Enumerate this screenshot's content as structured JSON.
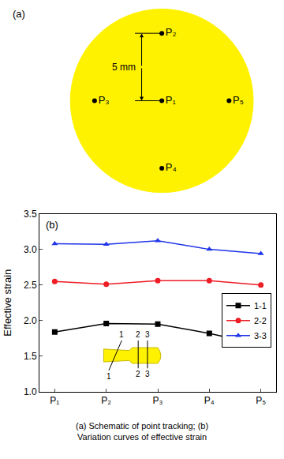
{
  "schematic": {
    "panel_label": "(a)",
    "points": [
      {
        "label": "P₁",
        "x": 0,
        "y": 0
      },
      {
        "label": "P₂",
        "x": 0,
        "y": 5
      },
      {
        "label": "P₃",
        "x": -5,
        "y": 0
      },
      {
        "label": "P₄",
        "x": 0,
        "y": -5
      },
      {
        "label": "P₅",
        "x": 5,
        "y": 0
      }
    ],
    "dimension": {
      "label": "5 mm",
      "value": 5
    }
  },
  "chart_data": {
    "type": "line",
    "panel_label": "(b)",
    "y_label": "Effective strain",
    "categories": [
      "P₁",
      "P₂",
      "P₃",
      "P₄",
      "P₅"
    ],
    "series": [
      {
        "name": "1-1",
        "color": "#000000",
        "marker": "square",
        "line_style": "solid",
        "values": [
          1.84,
          1.96,
          1.95,
          1.82,
          1.66
        ]
      },
      {
        "name": "2-2",
        "color": "#ee1c25",
        "marker": "circle",
        "line_style": "solid",
        "values": [
          2.55,
          2.51,
          2.56,
          2.56,
          2.5
        ]
      },
      {
        "name": "3-3",
        "color": "#1f35e8",
        "marker": "triangle-up",
        "line_style": "solid",
        "values": [
          3.08,
          3.07,
          3.12,
          3.0,
          2.94
        ]
      }
    ],
    "ylim": [
      1.0,
      3.5
    ],
    "yticks": [
      {
        "value": 1,
        "label": "1.0"
      },
      1.5,
      {
        "value": 2,
        "label": "2.0"
      },
      2.5,
      {
        "value": 3,
        "label": "3.0"
      },
      3.5
    ],
    "grid": false,
    "legend": "right",
    "inset": {
      "sections": [
        "1",
        "2",
        "3"
      ]
    }
  },
  "caption": [
    "(a) Schematic of point tracking; (b)",
    "Variation curves of effective strain"
  ]
}
